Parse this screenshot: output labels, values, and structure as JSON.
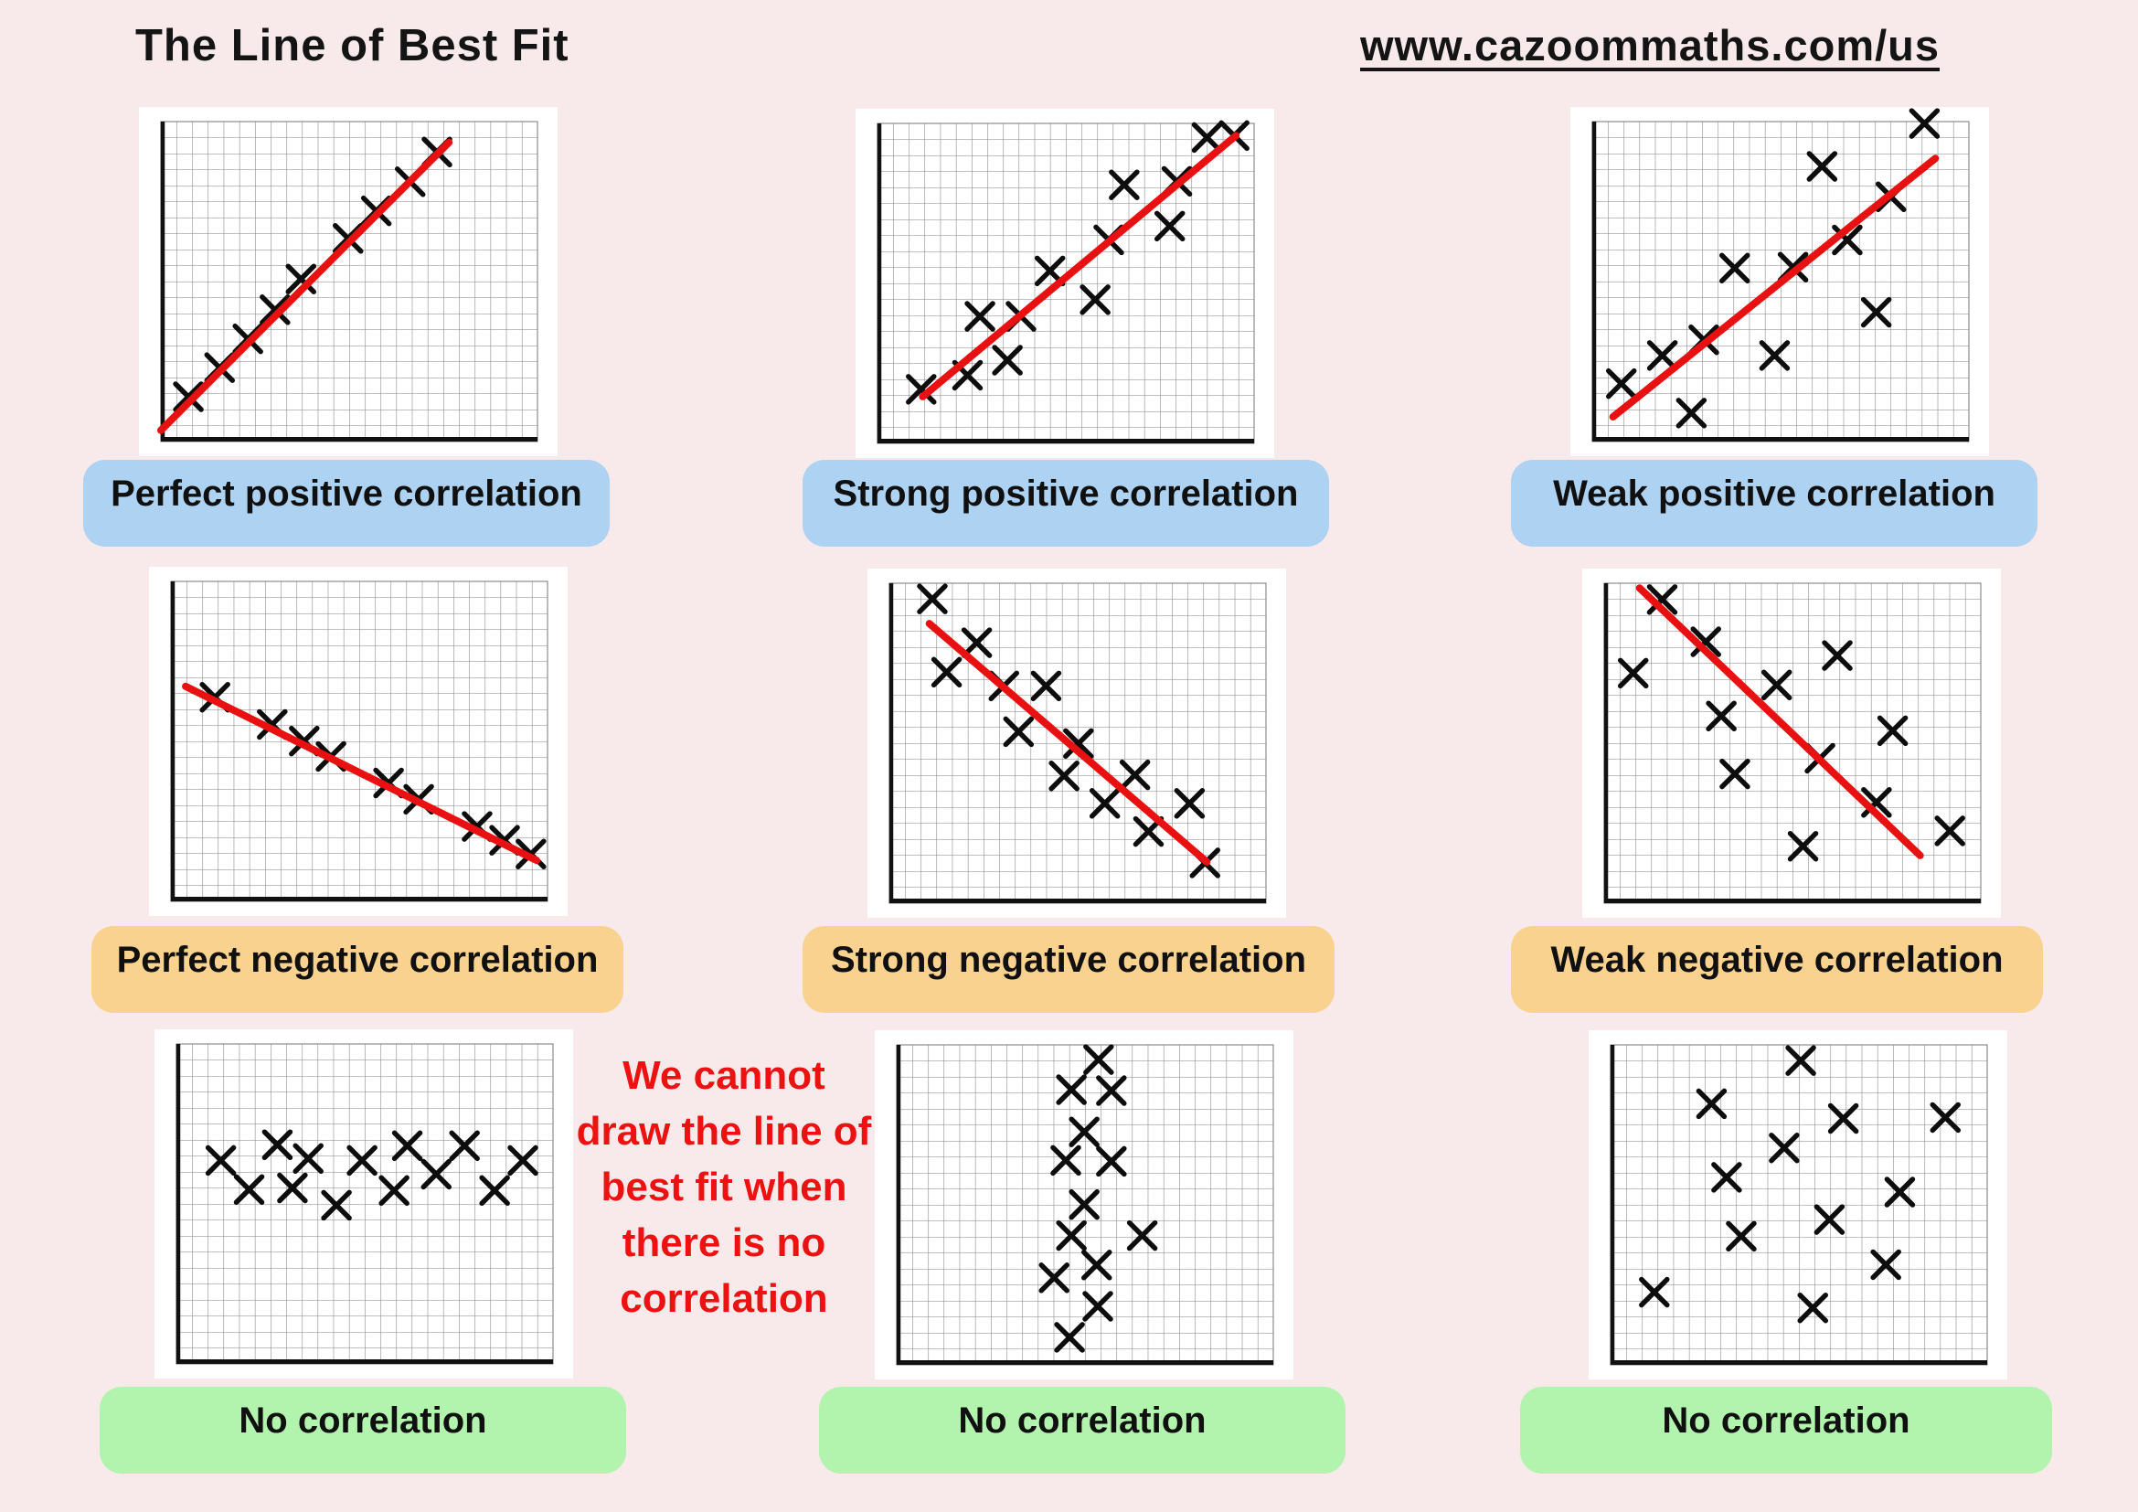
{
  "header": {
    "title": "The Line of Best Fit",
    "url": "www.cazoommaths.com/us"
  },
  "colors": {
    "page_bg": "#f8eaea",
    "panel_bg": "#ffffff",
    "grid_line": "#828282",
    "axis": "#111111",
    "marker": "#0d0d0d",
    "fit_line": "#e81010",
    "note_text": "#ee1111",
    "positive_label_bg": "#aed2f2",
    "negative_label_bg": "#f9d28f",
    "none_label_bg": "#b2f3ae"
  },
  "note": {
    "lines": [
      "We cannot",
      "draw the line of",
      "best fit when",
      "there is no",
      "correlation"
    ]
  },
  "chart_data": [
    {
      "type": "scatter",
      "label": "Perfect positive correlation",
      "has_fit_line": true,
      "fit_line": [
        [
          0.0,
          0.035
        ],
        [
          0.765,
          0.935
        ]
      ],
      "points": [
        [
          0.073,
          0.14
        ],
        [
          0.156,
          0.231
        ],
        [
          0.231,
          0.321
        ],
        [
          0.303,
          0.412
        ],
        [
          0.372,
          0.508
        ],
        [
          0.497,
          0.635
        ],
        [
          0.572,
          0.721
        ],
        [
          0.662,
          0.812
        ],
        [
          0.733,
          0.905
        ]
      ],
      "xlim": [
        0,
        1
      ],
      "ylim": [
        0,
        1
      ],
      "grid": true
    },
    {
      "type": "scatter",
      "label": "Strong positive correlation",
      "has_fit_line": true,
      "fit_line": [
        [
          0.12,
          0.146
        ],
        [
          0.952,
          0.962
        ]
      ],
      "points": [
        [
          0.116,
          0.169
        ],
        [
          0.239,
          0.213
        ],
        [
          0.345,
          0.26
        ],
        [
          0.272,
          0.397
        ],
        [
          0.381,
          0.397
        ],
        [
          0.458,
          0.539
        ],
        [
          0.578,
          0.449
        ],
        [
          0.614,
          0.636
        ],
        [
          0.655,
          0.808
        ],
        [
          0.776,
          0.679
        ],
        [
          0.795,
          0.819
        ],
        [
          0.875,
          0.956
        ],
        [
          0.947,
          0.962
        ]
      ],
      "xlim": [
        0,
        1
      ],
      "ylim": [
        0,
        1
      ],
      "grid": true
    },
    {
      "type": "scatter",
      "label": "Weak positive correlation",
      "has_fit_line": true,
      "fit_line": [
        [
          0.055,
          0.077
        ],
        [
          0.911,
          0.885
        ]
      ],
      "points": [
        [
          0.882,
          0.994
        ],
        [
          0.61,
          0.86
        ],
        [
          0.793,
          0.765
        ],
        [
          0.677,
          0.63
        ],
        [
          0.378,
          0.542
        ],
        [
          0.533,
          0.545
        ],
        [
          0.754,
          0.404
        ],
        [
          0.296,
          0.318
        ],
        [
          0.186,
          0.269
        ],
        [
          0.484,
          0.269
        ],
        [
          0.077,
          0.181
        ],
        [
          0.263,
          0.089
        ]
      ],
      "xlim": [
        0,
        1
      ],
      "ylim": [
        0,
        1
      ],
      "grid": true
    },
    {
      "type": "scatter",
      "label": "Perfect negative correlation",
      "has_fit_line": true,
      "fit_line": [
        [
          0.039,
          0.672
        ],
        [
          0.971,
          0.128
        ]
      ],
      "points": [
        [
          0.117,
          0.638
        ],
        [
          0.269,
          0.553
        ],
        [
          0.354,
          0.501
        ],
        [
          0.425,
          0.453
        ],
        [
          0.578,
          0.37
        ],
        [
          0.658,
          0.319
        ],
        [
          0.813,
          0.234
        ],
        [
          0.886,
          0.191
        ],
        [
          0.956,
          0.148
        ]
      ],
      "xlim": [
        0,
        1
      ],
      "ylim": [
        0,
        1
      ],
      "grid": true
    },
    {
      "type": "scatter",
      "label": "Strong negative correlation",
      "has_fit_line": true,
      "fit_line": [
        [
          0.106,
          0.874
        ],
        [
          0.843,
          0.129
        ]
      ],
      "points": [
        [
          0.114,
          0.951
        ],
        [
          0.232,
          0.814
        ],
        [
          0.152,
          0.722
        ],
        [
          0.304,
          0.679
        ],
        [
          0.416,
          0.679
        ],
        [
          0.343,
          0.536
        ],
        [
          0.502,
          0.499
        ],
        [
          0.464,
          0.398
        ],
        [
          0.652,
          0.401
        ],
        [
          0.572,
          0.312
        ],
        [
          0.797,
          0.312
        ],
        [
          0.688,
          0.224
        ],
        [
          0.838,
          0.126
        ]
      ],
      "xlim": [
        0,
        1
      ],
      "ylim": [
        0,
        1
      ],
      "grid": true
    },
    {
      "type": "scatter",
      "label": "Weak negative correlation",
      "has_fit_line": true,
      "fit_line": [
        [
          0.094,
          0.985
        ],
        [
          0.839,
          0.149
        ]
      ],
      "points": [
        [
          0.154,
          0.949
        ],
        [
          0.27,
          0.817
        ],
        [
          0.077,
          0.719
        ],
        [
          0.619,
          0.774
        ],
        [
          0.458,
          0.682
        ],
        [
          0.311,
          0.585
        ],
        [
          0.766,
          0.539
        ],
        [
          0.573,
          0.453
        ],
        [
          0.347,
          0.404
        ],
        [
          0.723,
          0.315
        ],
        [
          0.918,
          0.226
        ],
        [
          0.528,
          0.178
        ]
      ],
      "xlim": [
        0,
        1
      ],
      "ylim": [
        0,
        1
      ],
      "grid": true
    },
    {
      "type": "scatter",
      "label": "No correlation",
      "has_fit_line": false,
      "fit_line": null,
      "points": [
        [
          0.118,
          0.636
        ],
        [
          0.193,
          0.545
        ],
        [
          0.268,
          0.685
        ],
        [
          0.308,
          0.55
        ],
        [
          0.35,
          0.642
        ],
        [
          0.425,
          0.496
        ],
        [
          0.493,
          0.636
        ],
        [
          0.578,
          0.542
        ],
        [
          0.613,
          0.682
        ],
        [
          0.69,
          0.593
        ],
        [
          0.765,
          0.682
        ],
        [
          0.845,
          0.542
        ],
        [
          0.92,
          0.636
        ]
      ],
      "xlim": [
        0,
        1
      ],
      "ylim": [
        0,
        1
      ],
      "grid": true
    },
    {
      "type": "scatter",
      "label": "No correlation",
      "has_fit_line": false,
      "fit_line": null,
      "points": [
        [
          0.536,
          0.954
        ],
        [
          0.464,
          0.86
        ],
        [
          0.57,
          0.857
        ],
        [
          0.498,
          0.728
        ],
        [
          0.449,
          0.639
        ],
        [
          0.57,
          0.636
        ],
        [
          0.498,
          0.501
        ],
        [
          0.464,
          0.404
        ],
        [
          0.652,
          0.404
        ],
        [
          0.531,
          0.312
        ],
        [
          0.418,
          0.272
        ],
        [
          0.534,
          0.183
        ],
        [
          0.459,
          0.086
        ]
      ],
      "xlim": [
        0,
        1
      ],
      "ylim": [
        0,
        1
      ],
      "grid": true
    },
    {
      "type": "scatter",
      "label": "No correlation",
      "has_fit_line": false,
      "fit_line": null,
      "points": [
        [
          0.505,
          0.951
        ],
        [
          0.268,
          0.816
        ],
        [
          0.618,
          0.77
        ],
        [
          0.889,
          0.773
        ],
        [
          0.461,
          0.678
        ],
        [
          0.308,
          0.586
        ],
        [
          0.768,
          0.54
        ],
        [
          0.581,
          0.454
        ],
        [
          0.347,
          0.402
        ],
        [
          0.731,
          0.313
        ],
        [
          0.116,
          0.227
        ],
        [
          0.537,
          0.178
        ]
      ],
      "xlim": [
        0,
        1
      ],
      "ylim": [
        0,
        1
      ],
      "grid": true
    }
  ]
}
